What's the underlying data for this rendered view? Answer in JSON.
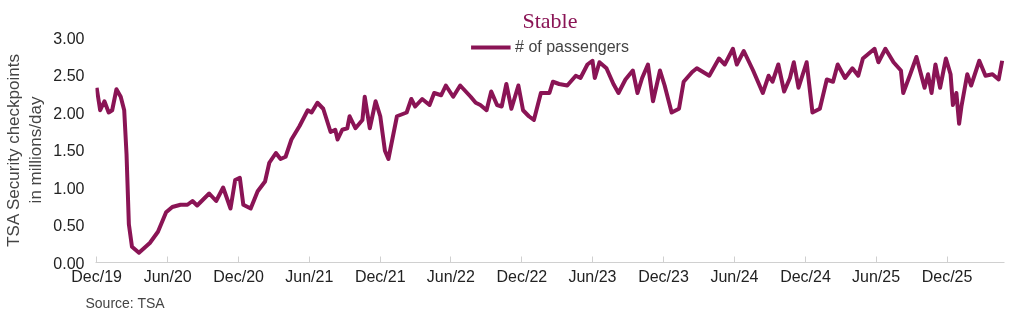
{
  "chart_data": {
    "type": "line",
    "title": "Stable",
    "ylabel": "TSA Security checkpoints\nin millions/day",
    "annotations": [
      "Source: TSA"
    ],
    "legend": "top",
    "grid": false,
    "marker": "none",
    "line_style": "solid",
    "xlim": [
      "2019-11-28",
      "2026-04-28"
    ],
    "ylim": [
      0,
      3
    ],
    "xticks": [
      {
        "value": "2019-12-01",
        "label": "Dec/19"
      },
      {
        "value": "2020-06-01",
        "label": "Jun/20"
      },
      {
        "value": "2020-12-01",
        "label": "Dec/20"
      },
      {
        "value": "2021-06-01",
        "label": "Jun/21"
      },
      {
        "value": "2021-12-01",
        "label": "Dec/21"
      },
      {
        "value": "2022-06-01",
        "label": "Jun/22"
      },
      {
        "value": "2022-12-01",
        "label": "Dec/22"
      },
      {
        "value": "2023-06-01",
        "label": "Jun/23"
      },
      {
        "value": "2023-12-01",
        "label": "Dec/23"
      },
      {
        "value": "2024-06-01",
        "label": "Jun/24"
      },
      {
        "value": "2024-12-01",
        "label": "Dec/24"
      },
      {
        "value": "2025-06-01",
        "label": "Jun/25"
      },
      {
        "value": "2025-12-01",
        "label": "Dec/25"
      }
    ],
    "yticks": [
      {
        "value": 0,
        "label": "0.00"
      },
      {
        "value": 0.5,
        "label": "0.50"
      },
      {
        "value": 1,
        "label": "1.00"
      },
      {
        "value": 1.5,
        "label": "1.50"
      },
      {
        "value": 2,
        "label": "2.00"
      },
      {
        "value": 2.5,
        "label": "2.50"
      },
      {
        "value": 3,
        "label": "3.00"
      }
    ],
    "x": [
      "2019-12-01",
      "2019-12-10",
      "2019-12-21",
      "2020-01-01",
      "2020-01-10",
      "2020-01-21",
      "2020-02-01",
      "2020-02-10",
      "2020-02-16",
      "2020-02-22",
      "2020-03-01",
      "2020-03-19",
      "2020-04-16",
      "2020-05-07",
      "2020-05-28",
      "2020-06-13",
      "2020-07-04",
      "2020-07-22",
      "2020-08-04",
      "2020-08-16",
      "2020-09-16",
      "2020-10-04",
      "2020-10-22",
      "2020-11-10",
      "2020-11-22",
      "2020-12-04",
      "2020-12-13",
      "2021-01-01",
      "2021-01-19",
      "2021-02-07",
      "2021-02-18",
      "2021-03-07",
      "2021-03-19",
      "2021-04-01",
      "2021-04-16",
      "2021-05-07",
      "2021-05-28",
      "2021-06-07",
      "2021-06-22",
      "2021-07-07",
      "2021-07-26",
      "2021-08-07",
      "2021-08-13",
      "2021-08-25",
      "2021-09-07",
      "2021-09-13",
      "2021-09-28",
      "2021-10-16",
      "2021-10-22",
      "2021-11-04",
      "2021-11-19",
      "2021-12-01",
      "2021-12-13",
      "2021-12-22",
      "2022-01-13",
      "2022-02-07",
      "2022-02-19",
      "2022-03-01",
      "2022-03-19",
      "2022-04-07",
      "2022-04-19",
      "2022-05-07",
      "2022-05-19",
      "2022-06-07",
      "2022-06-25",
      "2022-07-22",
      "2022-08-04",
      "2022-08-16",
      "2022-09-01",
      "2022-09-13",
      "2022-09-28",
      "2022-10-10",
      "2022-10-22",
      "2022-11-04",
      "2022-11-22",
      "2022-12-04",
      "2022-12-19",
      "2023-01-01",
      "2023-01-19",
      "2023-02-10",
      "2023-02-19",
      "2023-03-07",
      "2023-03-28",
      "2023-04-19",
      "2023-05-01",
      "2023-05-19",
      "2023-06-01",
      "2023-06-07",
      "2023-06-19",
      "2023-07-07",
      "2023-07-25",
      "2023-08-07",
      "2023-08-25",
      "2023-09-13",
      "2023-09-25",
      "2023-10-07",
      "2023-10-22",
      "2023-11-04",
      "2023-11-22",
      "2023-12-04",
      "2023-12-22",
      "2024-01-10",
      "2024-01-22",
      "2024-02-13",
      "2024-02-25",
      "2024-03-28",
      "2024-04-22",
      "2024-05-07",
      "2024-05-28",
      "2024-06-07",
      "2024-06-25",
      "2024-07-19",
      "2024-08-13",
      "2024-08-28",
      "2024-09-07",
      "2024-09-22",
      "2024-10-07",
      "2024-10-22",
      "2024-11-01",
      "2024-11-13",
      "2024-12-04",
      "2024-12-19",
      "2025-01-07",
      "2025-01-25",
      "2025-02-10",
      "2025-02-22",
      "2025-03-13",
      "2025-04-01",
      "2025-04-16",
      "2025-04-28",
      "2025-05-28",
      "2025-06-07",
      "2025-06-25",
      "2025-07-16",
      "2025-08-04",
      "2025-08-10",
      "2025-08-28",
      "2025-09-13",
      "2025-10-04",
      "2025-10-13",
      "2025-10-22",
      "2025-11-01",
      "2025-11-13",
      "2025-11-28",
      "2025-12-10",
      "2025-12-16",
      "2025-12-25",
      "2026-01-01",
      "2026-01-07",
      "2026-01-22",
      "2026-02-01",
      "2026-02-22",
      "2026-03-10",
      "2026-03-28",
      "2026-04-13",
      "2026-04-22"
    ],
    "series": [
      {
        "name": "# of passengers",
        "color": "#8a1455",
        "values": [
          2.33,
          2.03,
          2.15,
          2.0,
          2.03,
          2.31,
          2.21,
          2.03,
          1.44,
          0.51,
          0.21,
          0.13,
          0.26,
          0.41,
          0.67,
          0.74,
          0.77,
          0.77,
          0.82,
          0.76,
          0.92,
          0.82,
          1.0,
          0.72,
          1.1,
          1.13,
          0.77,
          0.72,
          0.95,
          1.08,
          1.33,
          1.46,
          1.38,
          1.41,
          1.64,
          1.82,
          2.03,
          2.0,
          2.13,
          2.05,
          1.74,
          1.77,
          1.64,
          1.77,
          1.79,
          1.95,
          1.79,
          1.9,
          2.21,
          1.79,
          2.15,
          1.95,
          1.49,
          1.38,
          1.95,
          2.0,
          2.18,
          2.08,
          2.18,
          2.1,
          2.26,
          2.23,
          2.36,
          2.21,
          2.36,
          2.21,
          2.13,
          2.1,
          2.03,
          2.28,
          2.1,
          2.08,
          2.38,
          2.05,
          2.36,
          2.03,
          1.95,
          1.9,
          2.26,
          2.26,
          2.41,
          2.38,
          2.36,
          2.49,
          2.46,
          2.64,
          2.69,
          2.46,
          2.67,
          2.59,
          2.38,
          2.26,
          2.44,
          2.56,
          2.26,
          2.46,
          2.64,
          2.15,
          2.56,
          2.36,
          2.0,
          2.05,
          2.41,
          2.54,
          2.59,
          2.49,
          2.72,
          2.64,
          2.85,
          2.64,
          2.82,
          2.56,
          2.26,
          2.49,
          2.41,
          2.64,
          2.28,
          2.46,
          2.67,
          2.33,
          2.67,
          2.0,
          2.05,
          2.44,
          2.41,
          2.64,
          2.46,
          2.59,
          2.49,
          2.72,
          2.85,
          2.67,
          2.85,
          2.67,
          2.56,
          2.26,
          2.51,
          2.74,
          2.33,
          2.51,
          2.26,
          2.64,
          2.33,
          2.72,
          2.51,
          2.1,
          2.26,
          1.85,
          2.08,
          2.51,
          2.36,
          2.69,
          2.49,
          2.51,
          2.44,
          2.69
        ]
      }
    ]
  }
}
